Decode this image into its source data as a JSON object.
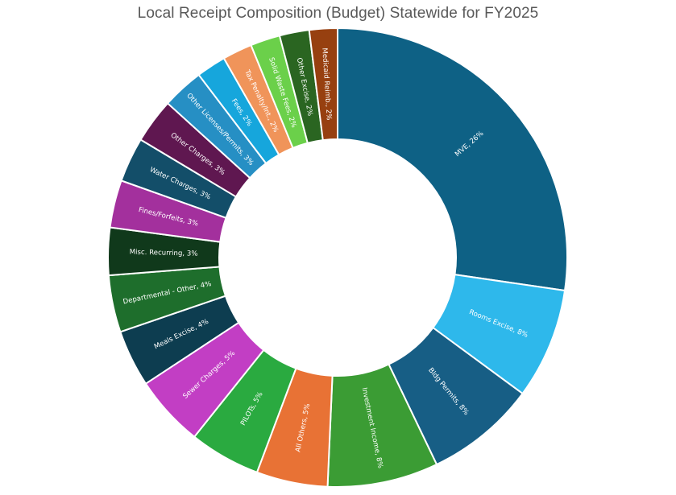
{
  "chart_data": {
    "type": "pie",
    "variant": "donut",
    "title": "Local Receipt Composition  (Budget) Statewide for FY2025",
    "legend": "none",
    "slices": [
      {
        "label": "MVE, 26%",
        "value": 26,
        "color": "#0e6185"
      },
      {
        "label": "Rooms Excise, 8%",
        "value": 8,
        "color": "#2eb8eb"
      },
      {
        "label": "Bldg Permits, 8%",
        "value": 8,
        "color": "#175e85"
      },
      {
        "label": "Investment Income, 8%",
        "value": 8,
        "color": "#3b9c34"
      },
      {
        "label": "All Others, 5%",
        "value": 5,
        "color": "#e87235"
      },
      {
        "label": "PILOTs, 5%",
        "value": 5,
        "color": "#2aaa40"
      },
      {
        "label": "Sewer Charges, 5%",
        "value": 5,
        "color": "#c23ec4"
      },
      {
        "label": "Meals Excise, 4%",
        "value": 4,
        "color": "#0d3d50"
      },
      {
        "label": "Departmental - Other, 4%",
        "value": 4,
        "color": "#1e6e2c"
      },
      {
        "label": "Misc. Recurring, 3%",
        "value": 3,
        "color": "#10391b"
      },
      {
        "label": "Fines/Forfeits, 3%",
        "value": 3,
        "color": "#a3309d"
      },
      {
        "label": "Water Charges, 3%",
        "value": 3,
        "color": "#134e69"
      },
      {
        "label": "Other Charges, 3%",
        "value": 3,
        "color": "#5f1750"
      },
      {
        "label": "Other Licenses/Permits, 3%",
        "value": 3,
        "color": "#268fc4"
      },
      {
        "label": "Fees, 2%",
        "value": 2,
        "color": "#16a6dc"
      },
      {
        "label": "Tax Penalty/Int., 2%",
        "value": 2,
        "color": "#f0945a"
      },
      {
        "label": "Solid Waste Fees, 2%",
        "value": 2,
        "color": "#6bd04a"
      },
      {
        "label": "Other Excise, 2%",
        "value": 2,
        "color": "#2a6521"
      },
      {
        "label": "Medicaid Reimb., 2%",
        "value": 2,
        "color": "#974010"
      }
    ]
  }
}
